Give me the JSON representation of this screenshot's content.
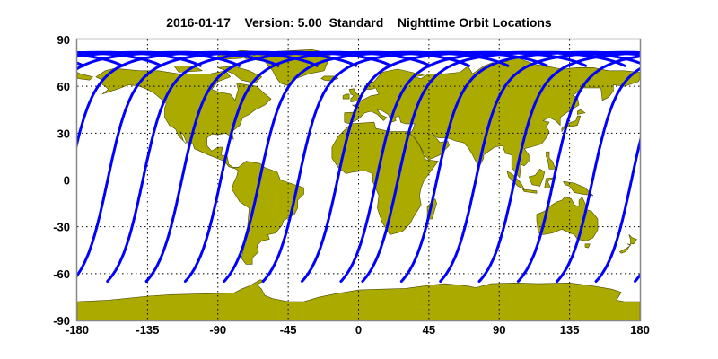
{
  "title": "2016-01-17    Version: 5.00  Standard    Nighttime Orbit Locations",
  "axes": {
    "x_ticks": [
      "-180",
      "-135",
      "-90",
      "-45",
      "0",
      "45",
      "90",
      "135",
      "180"
    ],
    "y_ticks": [
      "90",
      "60",
      "30",
      "0",
      "-30",
      "-60",
      "-90"
    ],
    "x_range": [
      -180,
      180
    ],
    "y_range": [
      -90,
      90
    ],
    "grid": "dotted"
  },
  "colors": {
    "land": "#aaaa00",
    "coastline": "#4a4a00",
    "orbit_track": "#0000ff",
    "background": "#ffffff",
    "frame": "#888888"
  },
  "orbits": {
    "pass": "nighttime",
    "equator_crossing_longitudes": [
      -138,
      -113.1,
      -88.2,
      -63.3,
      -38.4,
      -13.5,
      11.4,
      25.2,
      50.1,
      75,
      99.9,
      124.8,
      149.7,
      174.6,
      -160.5
    ],
    "latitude_range": [
      -65,
      82
    ]
  }
}
